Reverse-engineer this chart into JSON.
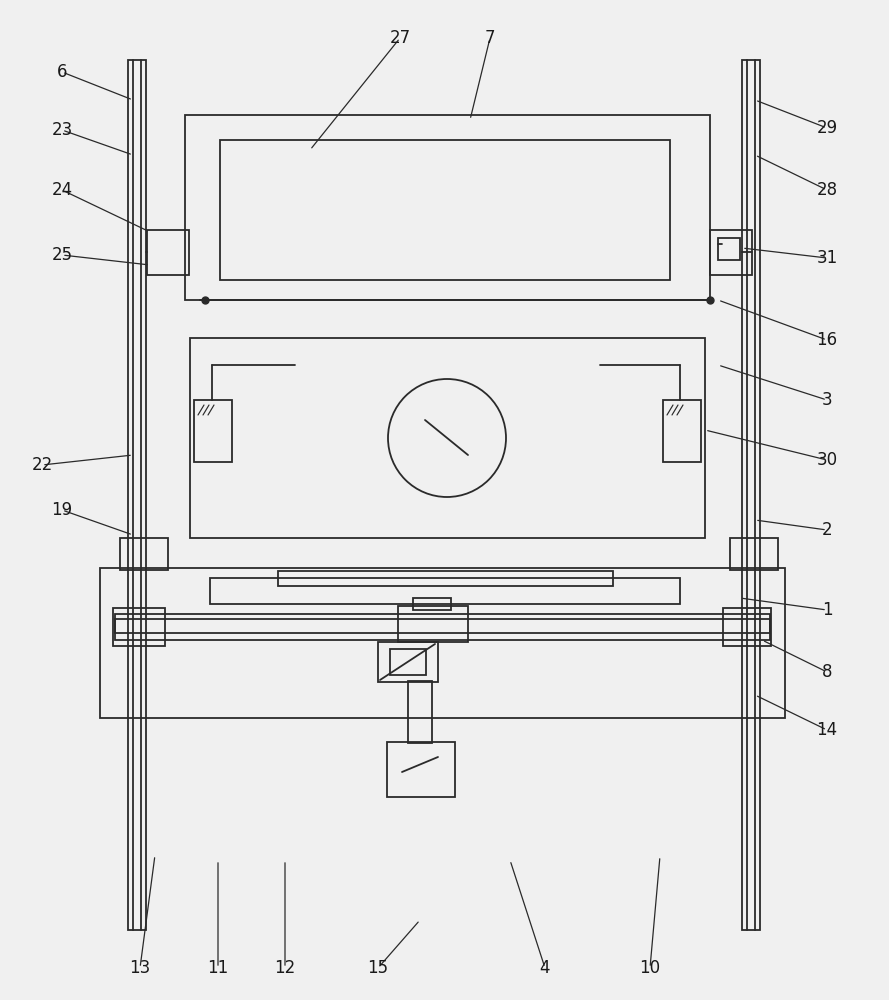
{
  "bg_color": "#f0f0f0",
  "line_color": "#2a2a2a",
  "lw": 1.3,
  "fig_w": 8.89,
  "fig_h": 10.0
}
